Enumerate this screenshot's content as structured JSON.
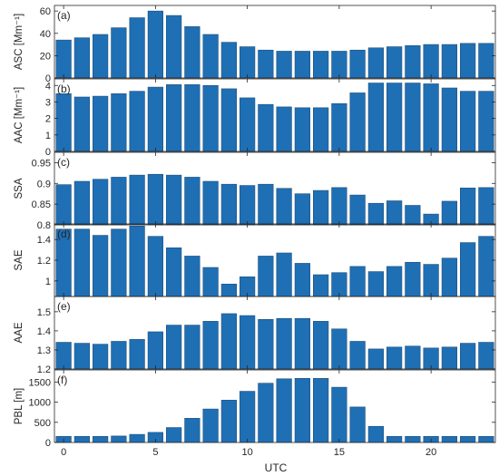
{
  "chart_data": {
    "type": "bar",
    "x": [
      0,
      1,
      2,
      3,
      4,
      5,
      6,
      7,
      8,
      9,
      10,
      11,
      12,
      13,
      14,
      15,
      16,
      17,
      18,
      19,
      20,
      21,
      22,
      23
    ],
    "xlabel": "UTC",
    "xticks": [
      0,
      5,
      10,
      15,
      20
    ],
    "xlim": [
      -0.5,
      23.5
    ],
    "bar_color": "#1f6fb5",
    "panels": [
      {
        "letter": "(a)",
        "ylabel": "ASC [Mm⁻¹]",
        "ylim": [
          0,
          65
        ],
        "yticks": [
          "0",
          "20",
          "40",
          "60"
        ],
        "ytick_values": [
          0,
          20,
          40,
          60
        ],
        "values": [
          34,
          36,
          39,
          45,
          54,
          60,
          56,
          46,
          39,
          32,
          28,
          25,
          24,
          24,
          24,
          24,
          25,
          27,
          28,
          29,
          30,
          30,
          31,
          31
        ]
      },
      {
        "letter": "(b)",
        "ylabel": "AAC [Mm⁻¹]",
        "ylim": [
          0,
          4.4
        ],
        "yticks": [
          "0",
          "1",
          "2",
          "3",
          "4"
        ],
        "ytick_values": [
          0,
          1,
          2,
          3,
          4
        ],
        "values": [
          3.5,
          3.3,
          3.35,
          3.5,
          3.65,
          3.9,
          4.05,
          4.05,
          4.0,
          3.8,
          3.25,
          2.85,
          2.7,
          2.65,
          2.65,
          2.9,
          3.55,
          4.15,
          4.15,
          4.15,
          4.1,
          3.85,
          3.65,
          3.65
        ]
      },
      {
        "letter": "(c)",
        "ylabel": "SSA",
        "ylim": [
          0.8,
          0.975
        ],
        "yticks": [
          "0.8",
          "0.85",
          "0.9",
          "0.95"
        ],
        "ytick_values": [
          0.8,
          0.85,
          0.9,
          0.95
        ],
        "values": [
          0.897,
          0.905,
          0.91,
          0.915,
          0.92,
          0.922,
          0.92,
          0.915,
          0.905,
          0.898,
          0.895,
          0.898,
          0.888,
          0.875,
          0.883,
          0.89,
          0.872,
          0.852,
          0.858,
          0.847,
          0.826,
          0.857,
          0.889,
          0.89
        ]
      },
      {
        "letter": "(d)",
        "ylabel": "SAE",
        "ylim": [
          0.85,
          1.55
        ],
        "yticks": [
          "1",
          "1.2",
          "1.4"
        ],
        "ytick_values": [
          1.0,
          1.2,
          1.4
        ],
        "values": [
          1.5,
          1.5,
          1.44,
          1.5,
          1.53,
          1.43,
          1.32,
          1.24,
          1.13,
          0.97,
          1.04,
          1.24,
          1.27,
          1.17,
          1.06,
          1.08,
          1.14,
          1.09,
          1.14,
          1.18,
          1.16,
          1.22,
          1.37,
          1.43
        ]
      },
      {
        "letter": "(e)",
        "ylabel": "AAE",
        "ylim": [
          1.2,
          1.58
        ],
        "yticks": [
          "1.2",
          "1.3",
          "1.4",
          "1.5"
        ],
        "ytick_values": [
          1.2,
          1.3,
          1.4,
          1.5
        ],
        "values": [
          1.34,
          1.335,
          1.33,
          1.345,
          1.355,
          1.395,
          1.43,
          1.43,
          1.45,
          1.49,
          1.48,
          1.46,
          1.465,
          1.465,
          1.45,
          1.41,
          1.345,
          1.305,
          1.315,
          1.32,
          1.31,
          1.315,
          1.335,
          1.34
        ]
      },
      {
        "letter": "(f)",
        "ylabel": "PBL [m]",
        "ylim": [
          0,
          1800
        ],
        "yticks": [
          "0",
          "500",
          "1000",
          "1500"
        ],
        "ytick_values": [
          0,
          500,
          1000,
          1500
        ],
        "values": [
          150,
          150,
          150,
          160,
          200,
          250,
          370,
          600,
          830,
          1050,
          1270,
          1470,
          1580,
          1590,
          1590,
          1370,
          880,
          400,
          150,
          150,
          150,
          150,
          150,
          150
        ]
      }
    ]
  }
}
